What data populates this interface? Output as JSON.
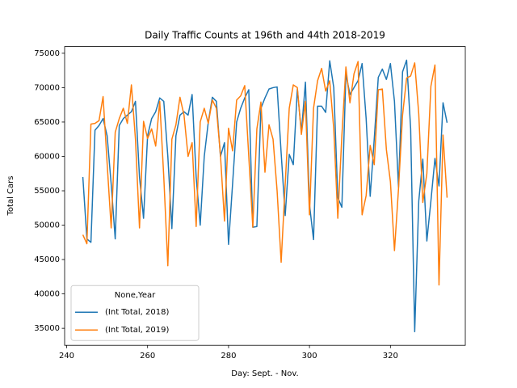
{
  "chart_data": {
    "type": "line",
    "title": "Daily Traffic Counts at 196th and 44th 2018-2019",
    "x_label": "Day: Sept. - Nov.",
    "y_label": "Total Cars",
    "x": [
      244,
      245,
      246,
      247,
      248,
      249,
      250,
      251,
      252,
      253,
      254,
      255,
      256,
      257,
      258,
      259,
      260,
      261,
      262,
      263,
      264,
      265,
      266,
      267,
      268,
      269,
      270,
      271,
      272,
      273,
      274,
      275,
      276,
      277,
      278,
      279,
      280,
      281,
      282,
      283,
      284,
      285,
      286,
      287,
      288,
      289,
      290,
      291,
      292,
      293,
      294,
      295,
      296,
      297,
      298,
      299,
      300,
      301,
      302,
      303,
      304,
      305,
      306,
      307,
      308,
      309,
      310,
      311,
      312,
      313,
      314,
      315,
      316,
      317,
      318,
      319,
      320,
      321,
      322,
      323,
      324,
      325,
      326,
      327,
      328,
      329,
      330,
      331,
      332,
      333,
      334
    ],
    "series": [
      {
        "name": "(Int Total, 2018)",
        "color": "#1f77b4",
        "values": [
          57000,
          48000,
          47500,
          63800,
          64500,
          65500,
          63000,
          56000,
          48000,
          64500,
          65500,
          66000,
          66500,
          68000,
          57000,
          51000,
          63000,
          65500,
          66500,
          68500,
          68000,
          60000,
          49500,
          63000,
          66000,
          66500,
          66000,
          69000,
          57000,
          50000,
          60000,
          65000,
          68600,
          68000,
          60000,
          62000,
          47200,
          56000,
          65000,
          67000,
          68500,
          69700,
          49700,
          49800,
          67000,
          68500,
          69800,
          70000,
          70100,
          60500,
          51400,
          60300,
          58800,
          69800,
          63500,
          70800,
          53000,
          47900,
          67300,
          67300,
          66400,
          73900,
          70000,
          54000,
          52600,
          72000,
          69000,
          70000,
          71000,
          73500,
          65500,
          54200,
          62500,
          71500,
          72700,
          71200,
          73500,
          68000,
          55500,
          72300,
          74000,
          64000,
          34500,
          53500,
          59600,
          47700,
          53500,
          59700,
          55700,
          67800,
          64900
        ]
      },
      {
        "name": "(Int Total, 2019)",
        "color": "#ff7f0e",
        "values": [
          48600,
          47300,
          64700,
          64800,
          65200,
          68700,
          59000,
          49600,
          63500,
          65500,
          67000,
          64800,
          70400,
          62500,
          49600,
          65100,
          62600,
          64000,
          61500,
          68000,
          57000,
          44100,
          62500,
          64600,
          68600,
          66000,
          60000,
          62000,
          49800,
          65000,
          67000,
          64800,
          68200,
          67000,
          60200,
          50600,
          64100,
          60800,
          68200,
          68800,
          70300,
          60000,
          49700,
          64000,
          67900,
          57700,
          64600,
          62500,
          55000,
          44600,
          56000,
          67000,
          70400,
          70000,
          63200,
          68000,
          51500,
          67000,
          71000,
          72800,
          69500,
          71000,
          64000,
          51000,
          63000,
          73000,
          67800,
          72000,
          73800,
          51500,
          54300,
          61600,
          58800,
          69700,
          69800,
          61000,
          56300,
          46300,
          55300,
          66000,
          71400,
          71700,
          73600,
          66200,
          53300,
          57500,
          70200,
          73300,
          41300,
          63100,
          54000
        ]
      }
    ],
    "legend_title": "None,Year",
    "legend_loc": "lower left",
    "xlim": [
      239.5,
      338.5
    ],
    "xticks": [
      240,
      260,
      280,
      300,
      320
    ],
    "ylim": [
      32525,
      75975
    ],
    "yticks": [
      35000,
      40000,
      45000,
      50000,
      55000,
      60000,
      65000,
      70000,
      75000
    ]
  }
}
